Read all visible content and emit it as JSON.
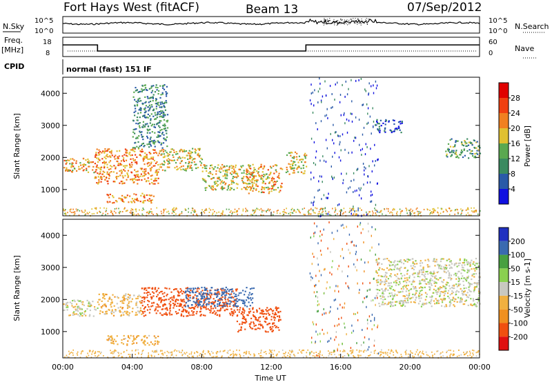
{
  "header": {
    "station": "Fort Hays West (fitACF)",
    "beam": "Beam 13",
    "date": "07/Sep/2012"
  },
  "noise_panel": {
    "left_label": "N.Sky",
    "right_label": "N.Search",
    "left_ticks": [
      "10^5",
      "10^0"
    ],
    "right_ticks": [
      "10^5",
      "10^0"
    ]
  },
  "freq_panel": {
    "left_label_1": "Freq.",
    "left_label_2": "[MHz]",
    "right_label": "Nave",
    "left_ticks": [
      "18",
      "8"
    ],
    "right_ticks": [
      "60",
      "0"
    ],
    "freq_steps": [
      [
        0,
        14.2
      ],
      [
        2.0,
        10.5
      ],
      [
        14.0,
        14.2
      ],
      [
        24,
        14.2
      ]
    ]
  },
  "cpid_panel": {
    "label": "CPID",
    "mode": "normal (fast) 151 IF"
  },
  "chart_data": [
    {
      "type": "heatmap",
      "name": "power",
      "ylabel": "Slant Range [km]",
      "colorbar_label": "Power [dB]",
      "colorbar_ticks": [
        "4",
        "8",
        "12",
        "16",
        "20",
        "24",
        "28"
      ],
      "ylim": [
        180,
        4500
      ],
      "y_ticks": [
        "1000",
        "2000",
        "3000",
        "4000"
      ],
      "xlim": [
        0,
        24
      ],
      "features": [
        {
          "t0": 0.0,
          "t1": 1.8,
          "r0": 1550,
          "r1": 2000,
          "level": 20
        },
        {
          "t0": 1.8,
          "t1": 5.5,
          "r0": 1200,
          "r1": 2300,
          "level": 22
        },
        {
          "t0": 4.0,
          "t1": 6.0,
          "r0": 2300,
          "r1": 4300,
          "level": 10
        },
        {
          "t0": 2.5,
          "t1": 5.2,
          "r0": 600,
          "r1": 900,
          "level": 22
        },
        {
          "t0": 5.5,
          "t1": 8.0,
          "r0": 1600,
          "r1": 2300,
          "level": 18
        },
        {
          "t0": 8.0,
          "t1": 11.0,
          "r0": 1000,
          "r1": 1800,
          "level": 18
        },
        {
          "t0": 10.5,
          "t1": 12.6,
          "r0": 900,
          "r1": 1800,
          "level": 20
        },
        {
          "t0": 12.8,
          "t1": 14.0,
          "r0": 1500,
          "r1": 2200,
          "level": 18
        },
        {
          "t0": 18.0,
          "t1": 19.5,
          "r0": 2800,
          "r1": 3200,
          "level": 6
        },
        {
          "t0": 22.0,
          "t1": 24.0,
          "r0": 2000,
          "r1": 2600,
          "level": 12
        }
      ]
    },
    {
      "type": "heatmap",
      "name": "velocity",
      "ylabel": "Slant Range [km]",
      "colorbar_label": "Velocity [m s-1]",
      "colorbar_ticks": [
        "200",
        "100",
        "50",
        "15",
        "-15",
        "-50",
        "-100",
        "-200"
      ],
      "ylim": [
        180,
        4500
      ],
      "y_ticks": [
        "1000",
        "2000",
        "3000",
        "4000"
      ],
      "xlim": [
        0,
        24
      ],
      "features": [
        {
          "t0": 0.0,
          "t1": 2.0,
          "r0": 1500,
          "r1": 2000,
          "level": 0
        },
        {
          "t0": 2.0,
          "t1": 4.5,
          "r0": 1500,
          "r1": 2200,
          "level": -30
        },
        {
          "t0": 4.5,
          "t1": 10.0,
          "r0": 1500,
          "r1": 2400,
          "level": -150
        },
        {
          "t0": 7.0,
          "t1": 11.0,
          "r0": 1800,
          "r1": 2400,
          "level": 150
        },
        {
          "t0": 10.0,
          "t1": 12.5,
          "r0": 1000,
          "r1": 1800,
          "level": -150
        },
        {
          "t0": 2.5,
          "t1": 5.5,
          "r0": 600,
          "r1": 900,
          "level": -40
        },
        {
          "t0": 18.0,
          "t1": 24.0,
          "r0": 1800,
          "r1": 3300,
          "level": 0
        }
      ]
    }
  ],
  "x_axis": {
    "label": "Time UT",
    "ticks": [
      "00:00",
      "04:00",
      "08:00",
      "12:00",
      "16:00",
      "20:00",
      "00:00"
    ]
  }
}
